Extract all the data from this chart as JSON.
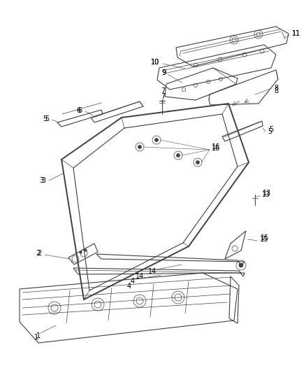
{
  "background_color": "#ffffff",
  "line_color": "#404040",
  "label_color": "#000000",
  "lw_thin": 0.5,
  "lw_med": 0.8,
  "lw_thick": 1.4
}
